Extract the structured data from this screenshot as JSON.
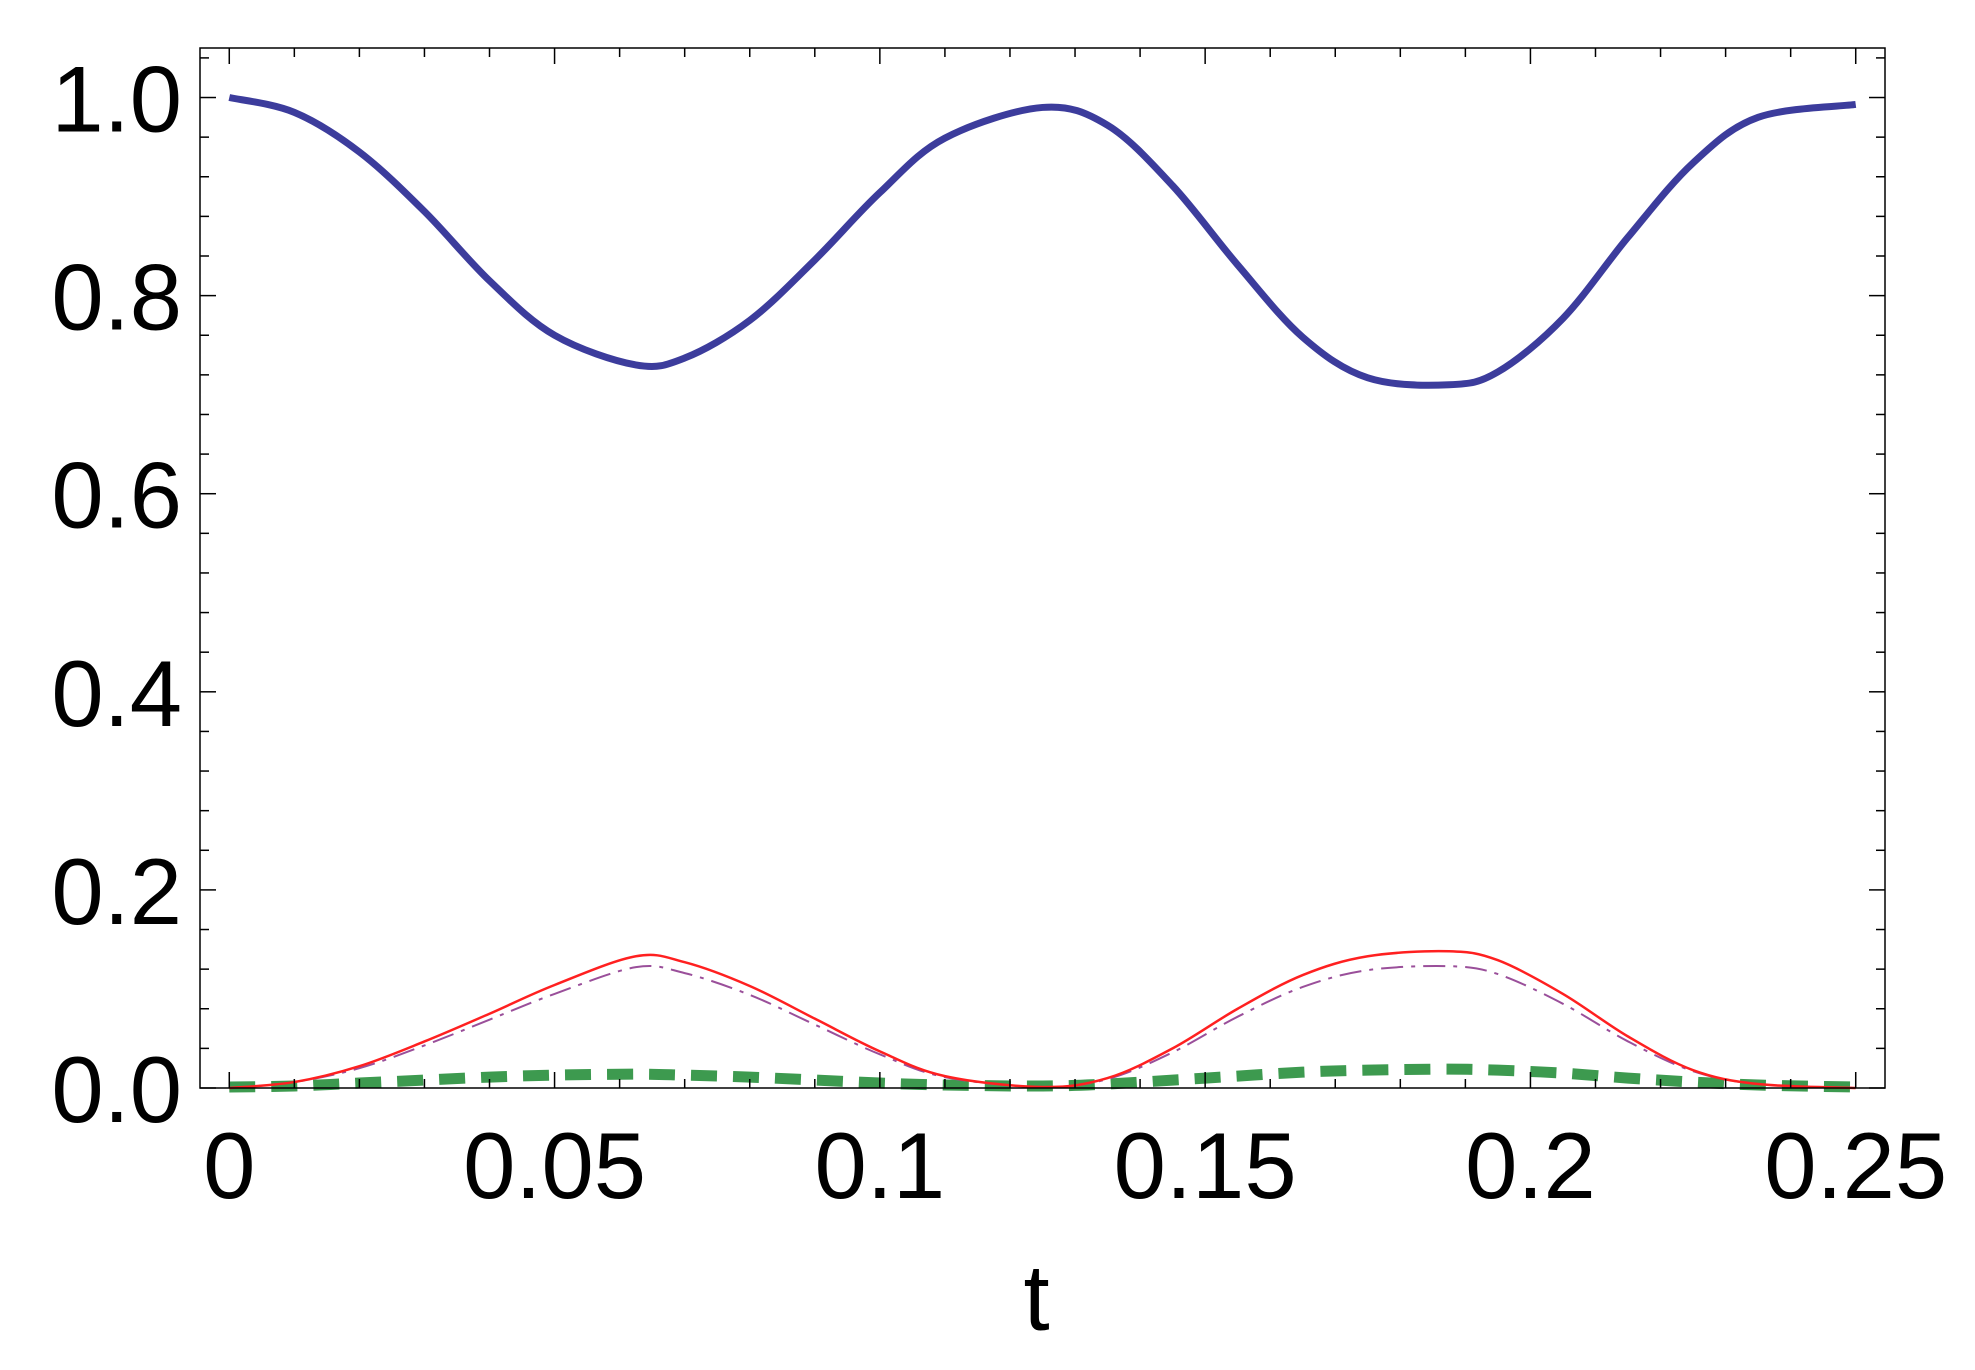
{
  "chart_data": {
    "type": "line",
    "title": "",
    "xlabel": "t",
    "ylabel": "",
    "xlim": [
      -0.0045,
      0.2545
    ],
    "ylim": [
      0,
      1.05
    ],
    "grid": false,
    "legend": "none",
    "x_ticks": [
      {
        "value": 0,
        "label": "0"
      },
      {
        "value": 0.05,
        "label": "0.05"
      },
      {
        "value": 0.1,
        "label": "0.1"
      },
      {
        "value": 0.15,
        "label": "0.15"
      },
      {
        "value": 0.2,
        "label": "0.2"
      },
      {
        "value": 0.25,
        "label": "0.25"
      }
    ],
    "y_ticks": [
      {
        "value": 0,
        "label": "0.0"
      },
      {
        "value": 0.2,
        "label": "0.2"
      },
      {
        "value": 0.4,
        "label": "0.4"
      },
      {
        "value": 0.6,
        "label": "0.6"
      },
      {
        "value": 0.8,
        "label": "0.8"
      },
      {
        "value": 1.0,
        "label": "1.0"
      }
    ],
    "series": [
      {
        "style": "solid-thick",
        "color": "#3c3c9c",
        "x": [
          0,
          0.01,
          0.02,
          0.03,
          0.04,
          0.05,
          0.0625,
          0.07,
          0.08,
          0.09,
          0.1,
          0.11,
          0.125,
          0.135,
          0.145,
          0.155,
          0.165,
          0.175,
          0.1875,
          0.195,
          0.205,
          0.215,
          0.225,
          0.235,
          0.25
        ],
        "y": [
          1.0,
          0.985,
          0.945,
          0.885,
          0.815,
          0.76,
          0.73,
          0.737,
          0.775,
          0.836,
          0.904,
          0.959,
          0.99,
          0.972,
          0.911,
          0.831,
          0.758,
          0.717,
          0.71,
          0.723,
          0.777,
          0.859,
          0.934,
          0.98,
          0.993
        ]
      },
      {
        "style": "solid-thin",
        "color": "#ff2020",
        "x": [
          0,
          0.01,
          0.02,
          0.03,
          0.04,
          0.05,
          0.0625,
          0.07,
          0.08,
          0.09,
          0.1,
          0.11,
          0.125,
          0.135,
          0.145,
          0.155,
          0.165,
          0.175,
          0.1875,
          0.195,
          0.205,
          0.215,
          0.225,
          0.235,
          0.25
        ],
        "y": [
          0,
          0.006,
          0.022,
          0.047,
          0.075,
          0.104,
          0.133,
          0.127,
          0.103,
          0.07,
          0.037,
          0.012,
          0.001,
          0.01,
          0.04,
          0.08,
          0.114,
          0.133,
          0.138,
          0.129,
          0.095,
          0.052,
          0.018,
          0.004,
          0
        ]
      },
      {
        "style": "dash-dot",
        "color": "#9a4f9a",
        "x": [
          0,
          0.01,
          0.02,
          0.03,
          0.04,
          0.05,
          0.0625,
          0.07,
          0.08,
          0.09,
          0.1,
          0.11,
          0.125,
          0.135,
          0.145,
          0.155,
          0.165,
          0.175,
          0.1875,
          0.195,
          0.205,
          0.215,
          0.225,
          0.235,
          0.25
        ],
        "y": [
          0,
          0.006,
          0.02,
          0.043,
          0.069,
          0.095,
          0.122,
          0.116,
          0.094,
          0.064,
          0.034,
          0.011,
          0.001,
          0.009,
          0.036,
          0.072,
          0.102,
          0.119,
          0.123,
          0.115,
          0.085,
          0.047,
          0.017,
          0.004,
          0
        ]
      },
      {
        "style": "dashed-thick",
        "color": "#3d9a4f",
        "x": [
          0,
          0.01,
          0.02,
          0.03,
          0.04,
          0.05,
          0.0625,
          0.07,
          0.08,
          0.09,
          0.1,
          0.11,
          0.125,
          0.135,
          0.145,
          0.155,
          0.165,
          0.175,
          0.1875,
          0.195,
          0.205,
          0.215,
          0.225,
          0.235,
          0.25
        ],
        "y": [
          0.001,
          0.002,
          0.005,
          0.008,
          0.011,
          0.013,
          0.014,
          0.013,
          0.011,
          0.008,
          0.005,
          0.003,
          0.002,
          0.004,
          0.008,
          0.012,
          0.016,
          0.018,
          0.019,
          0.018,
          0.015,
          0.01,
          0.006,
          0.003,
          0.001
        ]
      }
    ]
  }
}
